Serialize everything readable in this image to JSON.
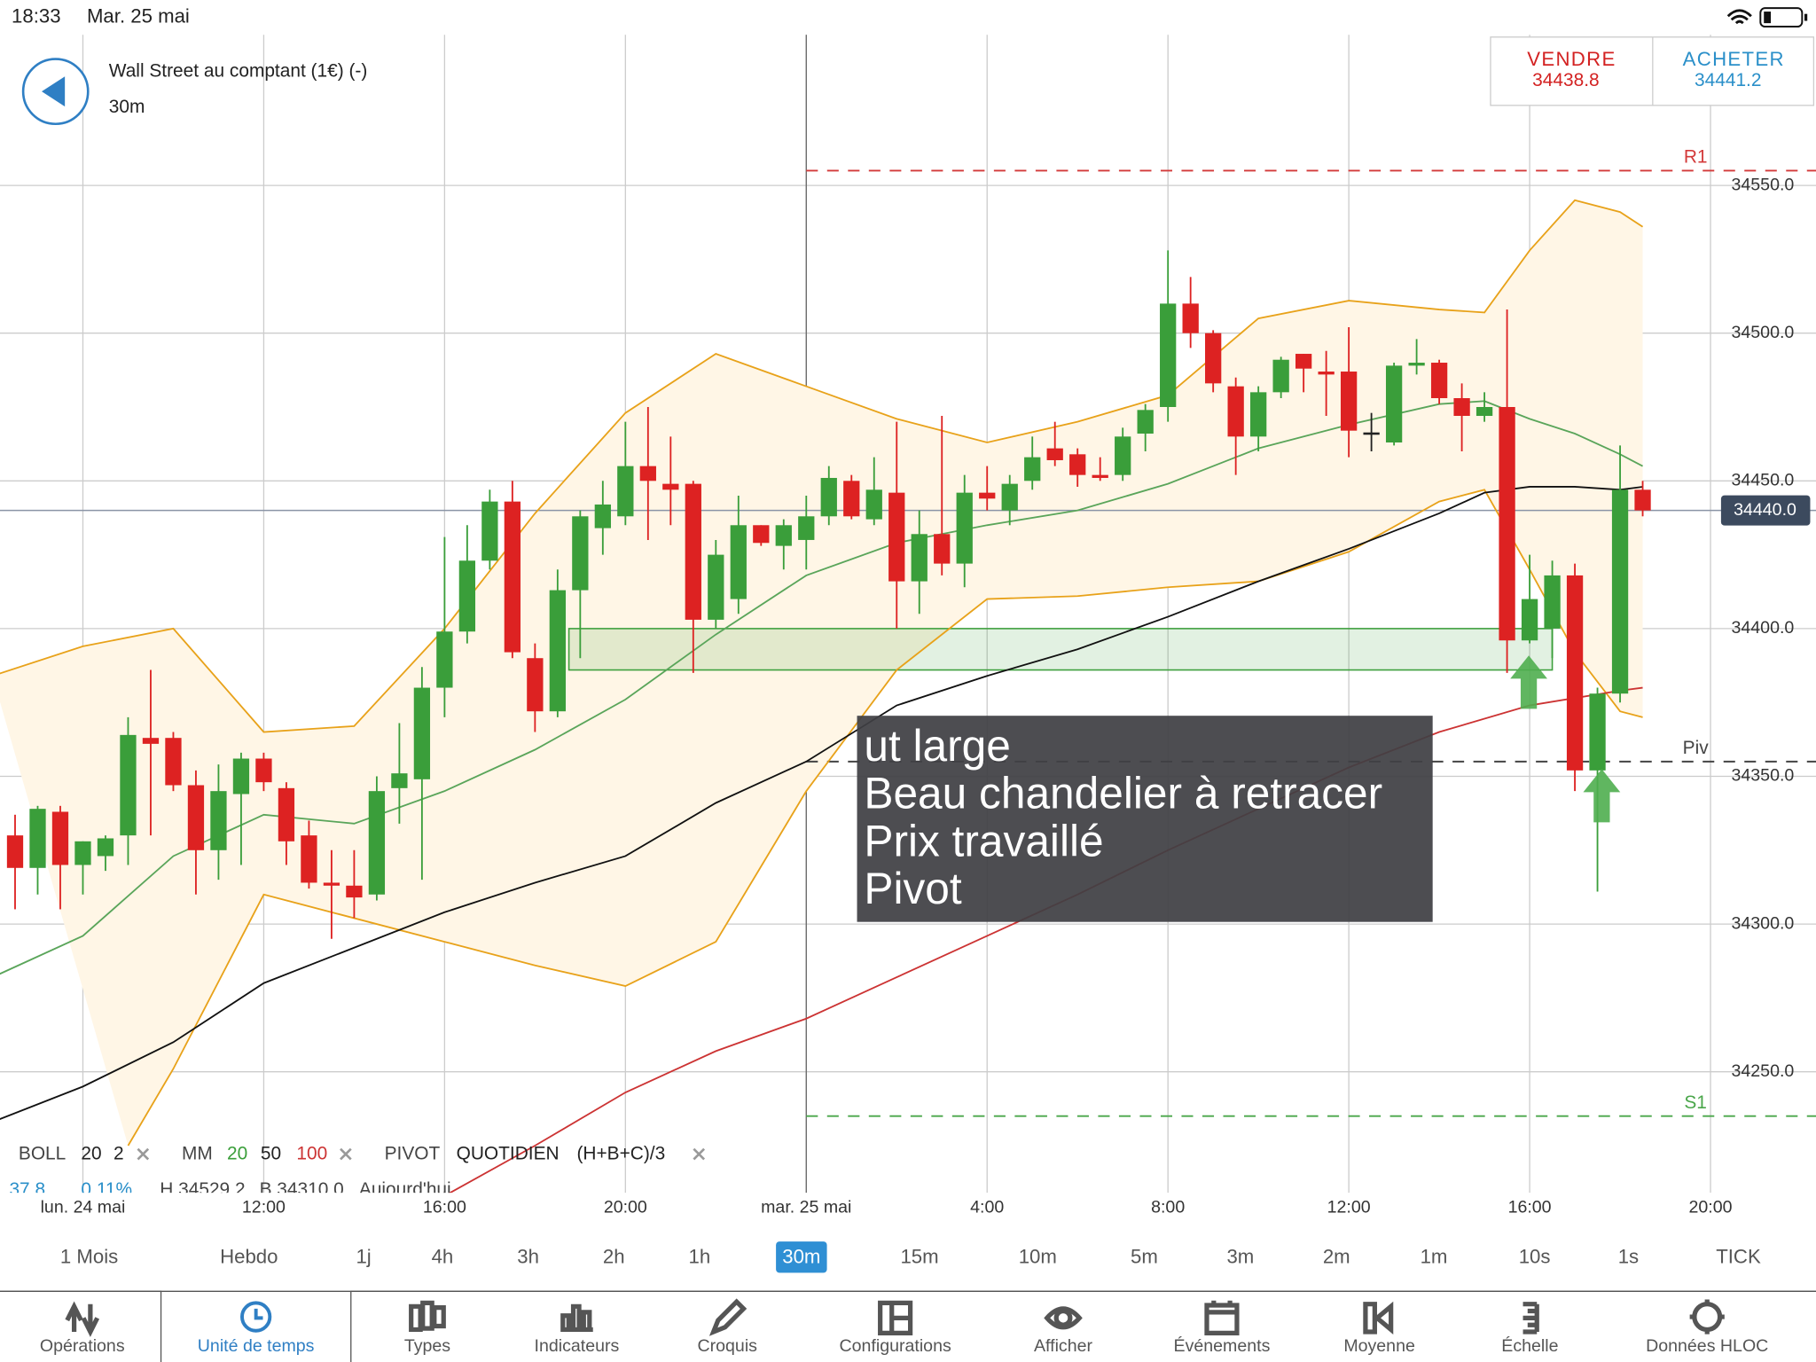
{
  "status_bar": {
    "time": "18:33",
    "date": "Mar. 25 mai"
  },
  "header": {
    "instrument": "Wall Street au comptant (1€) (-)",
    "timeframe": "30m"
  },
  "quote": {
    "sell_label": "VENDRE",
    "sell_price": "34438.8",
    "buy_label": "ACHETER",
    "buy_price": "34441.2"
  },
  "chart_data": {
    "type": "candlestick",
    "colors": {
      "up": "#3a9e3a",
      "down": "#dd2222",
      "doji": "#222222"
    },
    "xlim": [
      "24 mai 06:10",
      "25 mai 22:20"
    ],
    "ylim": [
      34209,
      34601
    ],
    "yticks": [
      {
        "value": 34250,
        "label": "34250.0"
      },
      {
        "value": 34300,
        "label": "34300.0"
      },
      {
        "value": 34350,
        "label": "34350.0"
      },
      {
        "value": 34400,
        "label": "34400.0"
      },
      {
        "value": 34450,
        "label": "34450.0"
      },
      {
        "value": 34500,
        "label": "34500.0"
      },
      {
        "value": 34550,
        "label": "34550.0"
      }
    ],
    "xticks": [
      {
        "value": "24 mai 08:00",
        "label": "lun. 24 mai"
      },
      {
        "value": "24 mai 12:00",
        "label": "12:00"
      },
      {
        "value": "24 mai 16:00",
        "label": "16:00"
      },
      {
        "value": "24 mai 20:00",
        "label": "20:00"
      },
      {
        "value": "25 mai 00:00",
        "label": "mar. 25 mai"
      },
      {
        "value": "25 mai 04:00",
        "label": "4:00"
      },
      {
        "value": "25 mai 08:00",
        "label": "8:00"
      },
      {
        "value": "25 mai 12:00",
        "label": "12:00"
      },
      {
        "value": "25 mai 16:00",
        "label": "16:00"
      },
      {
        "value": "25 mai 20:00",
        "label": "20:00"
      }
    ],
    "grid": true,
    "day_line": "25 mai 00:00",
    "x": [
      "24 mai 06:30",
      "24 mai 07:00",
      "24 mai 07:30",
      "24 mai 08:00",
      "24 mai 08:30",
      "24 mai 09:00",
      "24 mai 09:30",
      "24 mai 10:00",
      "24 mai 10:30",
      "24 mai 11:00",
      "24 mai 11:30",
      "24 mai 12:00",
      "24 mai 12:30",
      "24 mai 13:00",
      "24 mai 13:30",
      "24 mai 14:00",
      "24 mai 14:30",
      "24 mai 15:00",
      "24 mai 15:30",
      "24 mai 16:00",
      "24 mai 16:30",
      "24 mai 17:00",
      "24 mai 17:30",
      "24 mai 18:00",
      "24 mai 18:30",
      "24 mai 19:00",
      "24 mai 19:30",
      "24 mai 20:00",
      "24 mai 20:30",
      "24 mai 21:00",
      "24 mai 21:30",
      "24 mai 22:00",
      "24 mai 22:30",
      "24 mai 23:00",
      "24 mai 23:30",
      "25 mai 00:00",
      "25 mai 00:30",
      "25 mai 01:00",
      "25 mai 01:30",
      "25 mai 02:00",
      "25 mai 02:30",
      "25 mai 03:00",
      "25 mai 03:30",
      "25 mai 04:00",
      "25 mai 04:30",
      "25 mai 05:00",
      "25 mai 05:30",
      "25 mai 06:00",
      "25 mai 06:30",
      "25 mai 07:00",
      "25 mai 07:30",
      "25 mai 08:00",
      "25 mai 08:30",
      "25 mai 09:00",
      "25 mai 09:30",
      "25 mai 10:00",
      "25 mai 10:30",
      "25 mai 11:00",
      "25 mai 11:30",
      "25 mai 12:00",
      "25 mai 12:30",
      "25 mai 13:00",
      "25 mai 13:30",
      "25 mai 14:00",
      "25 mai 14:30",
      "25 mai 15:00",
      "25 mai 15:30",
      "25 mai 16:00",
      "25 mai 16:30",
      "25 mai 17:00",
      "25 mai 17:30",
      "25 mai 18:00",
      "25 mai 18:30"
    ],
    "open": [
      34330,
      34319,
      34338,
      34320,
      34323,
      34330,
      34363,
      34363,
      34347,
      34325,
      34344,
      34356,
      34346,
      34330,
      34314,
      34313,
      34310,
      34346,
      34349,
      34380,
      34399,
      34423,
      34443,
      34390,
      34372,
      34413,
      34434,
      34438,
      34455,
      34449,
      34449,
      34403,
      34410,
      34435,
      34428,
      34430,
      34438,
      34450,
      34437,
      34446,
      34416,
      34432,
      34422,
      34446,
      34440,
      34450,
      34461,
      34459,
      34452,
      34452,
      34466,
      34475,
      34510,
      34500,
      34482,
      34465,
      34480,
      34493,
      34487,
      34487,
      34466,
      34463,
      34489,
      34490,
      34478,
      34472,
      34475,
      34396,
      34400,
      34418,
      34352,
      34378,
      34447
    ],
    "high": [
      34337,
      34340,
      34340,
      34328,
      34330,
      34370,
      34386,
      34365,
      34352,
      34354,
      34358,
      34358,
      34348,
      34335,
      34325,
      34325,
      34350,
      34368,
      34387,
      34431,
      34435,
      34447,
      34450,
      34395,
      34420,
      34440,
      34450,
      34470,
      34475,
      34465,
      34450,
      34430,
      34445,
      34435,
      34437,
      34445,
      34455,
      34452,
      34458,
      34470,
      34440,
      34472,
      34452,
      34455,
      34452,
      34465,
      34470,
      34461,
      34458,
      34468,
      34476,
      34528,
      34519,
      34501,
      34485,
      34482,
      34492,
      34493,
      34494,
      34502,
      34473,
      34490,
      34498,
      34491,
      34483,
      34480,
      34508,
      34425,
      34423,
      34422,
      34380,
      34462,
      34450
    ],
    "low": [
      34305,
      34310,
      34305,
      34310,
      34318,
      34320,
      34330,
      34345,
      34310,
      34315,
      34320,
      34345,
      34320,
      34312,
      34295,
      34302,
      34308,
      34334,
      34315,
      34370,
      34395,
      34420,
      34390,
      34365,
      34370,
      34390,
      34425,
      34435,
      34430,
      34435,
      34385,
      34400,
      34405,
      34428,
      34420,
      34420,
      34435,
      34437,
      34435,
      34400,
      34405,
      34418,
      34414,
      34440,
      34435,
      34447,
      34455,
      34448,
      34450,
      34450,
      34460,
      34470,
      34495,
      34480,
      34452,
      34460,
      34478,
      34480,
      34472,
      34458,
      34460,
      34462,
      34486,
      34476,
      34460,
      34470,
      34385,
      34395,
      34390,
      34345,
      34311,
      34375,
      34438
    ],
    "close": [
      34319,
      34339,
      34320,
      34328,
      34329,
      34364,
      34361,
      34347,
      34325,
      34345,
      34356,
      34348,
      34328,
      34314,
      34313,
      34309,
      34345,
      34351,
      34380,
      34399,
      34423,
      34443,
      34392,
      34372,
      34413,
      34438,
      34442,
      34455,
      34450,
      34447,
      34403,
      34425,
      34435,
      34429,
      34435,
      34438,
      34451,
      34438,
      34447,
      34416,
      34432,
      34422,
      34446,
      34444,
      34449,
      34458,
      34457,
      34452,
      34451,
      34465,
      34474,
      34510,
      34500,
      34483,
      34465,
      34480,
      34491,
      34488,
      34486,
      34467,
      34466,
      34489,
      34490,
      34478,
      34472,
      34475,
      34396,
      34410,
      34418,
      34352,
      34378,
      34447,
      34440
    ],
    "band_fill": "#fff6e6",
    "indicators": [
      {
        "color": "#e8a21a",
        "x": [
          "24 mai 06:00",
          "24 mai 08:00",
          "24 mai 10:00",
          "24 mai 12:00",
          "24 mai 14:00",
          "24 mai 16:00",
          "24 mai 18:00",
          "24 mai 20:00",
          "24 mai 22:00",
          "25 mai 00:00",
          "25 mai 02:00",
          "25 mai 04:00",
          "25 mai 06:00",
          "25 mai 08:00",
          "25 mai 10:00",
          "25 mai 12:00",
          "25 mai 14:00",
          "25 mai 15:00",
          "25 mai 16:00",
          "25 mai 17:00",
          "25 mai 18:00",
          "25 mai 18:30"
        ],
        "values": [
          34384,
          34394,
          34400,
          34365,
          34367,
          34400,
          34439,
          34473,
          34493,
          34482,
          34471,
          34463,
          34470,
          34479,
          34505,
          34511,
          34508,
          34507,
          34528,
          34545,
          34541,
          34536
        ]
      },
      {
        "color": "#e8a21a",
        "x": [
          "24 mai 09:00",
          "24 mai 10:00",
          "24 mai 12:00",
          "24 mai 14:00",
          "24 mai 16:00",
          "24 mai 18:00",
          "24 mai 20:00",
          "24 mai 22:00",
          "25 mai 00:00",
          "25 mai 02:00",
          "25 mai 04:00",
          "25 mai 06:00",
          "25 mai 08:00",
          "25 mai 10:00",
          "25 mai 12:00",
          "25 mai 14:00",
          "25 mai 15:00",
          "25 mai 16:00",
          "25 mai 17:00",
          "25 mai 18:00",
          "25 mai 18:30"
        ],
        "values": [
          34225,
          34251,
          34310,
          34302,
          34294,
          34286,
          34279,
          34294,
          34345,
          34386,
          34410,
          34411,
          34414,
          34416,
          34426,
          34443,
          34447,
          34420,
          34392,
          34372,
          34370
        ]
      },
      {
        "color": "#5aa55a",
        "x": [
          "24 mai 06:00",
          "24 mai 08:00",
          "24 mai 10:00",
          "24 mai 12:00",
          "24 mai 14:00",
          "24 mai 16:00",
          "24 mai 18:00",
          "24 mai 20:00",
          "24 mai 22:00",
          "25 mai 00:00",
          "25 mai 02:00",
          "25 mai 04:00",
          "25 mai 06:00",
          "25 mai 08:00",
          "25 mai 10:00",
          "25 mai 12:00",
          "25 mai 14:00",
          "25 mai 15:00",
          "25 mai 16:00",
          "25 mai 17:00",
          "25 mai 18:00",
          "25 mai 18:30"
        ],
        "values": [
          34282,
          34296,
          34323,
          34337,
          34334,
          34345,
          34359,
          34376,
          34398,
          34418,
          34429,
          34435,
          34440,
          34449,
          34461,
          34469,
          34476,
          34477,
          34471,
          34466,
          34459,
          34455
        ]
      },
      {
        "color": "#111111",
        "x": [
          "24 mai 06:00",
          "24 mai 08:00",
          "24 mai 10:00",
          "24 mai 12:00",
          "24 mai 14:00",
          "24 mai 16:00",
          "24 mai 18:00",
          "24 mai 20:00",
          "24 mai 22:00",
          "25 mai 00:00",
          "25 mai 02:00",
          "25 mai 04:00",
          "25 mai 06:00",
          "25 mai 08:00",
          "25 mai 10:00",
          "25 mai 12:00",
          "25 mai 14:00",
          "25 mai 15:00",
          "25 mai 16:00",
          "25 mai 17:00",
          "25 mai 18:00",
          "25 mai 18:30"
        ],
        "values": [
          34233,
          34245,
          34260,
          34280,
          34292,
          34304,
          34314,
          34323,
          34341,
          34355,
          34374,
          34384,
          34393,
          34404,
          34416,
          34427,
          34439,
          34446,
          34448,
          34448,
          34447,
          34448
        ]
      },
      {
        "color": "#cc3333",
        "x": [
          "24 mai 16:00",
          "24 mai 18:00",
          "24 mai 20:00",
          "24 mai 22:00",
          "25 mai 00:00",
          "25 mai 02:00",
          "25 mai 04:00",
          "25 mai 06:00",
          "25 mai 08:00",
          "25 mai 10:00",
          "25 mai 12:00",
          "25 mai 14:00",
          "25 mai 16:00",
          "25 mai 18:00",
          "25 mai 18:30"
        ],
        "values": [
          34208,
          34225,
          34243,
          34257,
          34268,
          34282,
          34296,
          34310,
          34325,
          34339,
          34353,
          34365,
          34374,
          34379,
          34380
        ]
      }
    ],
    "levels": [
      {
        "label": "R1",
        "value": 34555,
        "color": "#d33a3a",
        "from": "25 mai 00:00"
      },
      {
        "label": "Piv",
        "value": 34355,
        "color": "#444444",
        "from": "25 mai 00:00"
      },
      {
        "label": "S1",
        "value": 34235,
        "color": "#4aa64a",
        "from": "25 mai 00:00"
      }
    ],
    "zone": {
      "x": [
        "24 mai 18:45",
        "25 mai 16:30"
      ],
      "values": [
        34400,
        34386
      ],
      "color": "#3c9f3c"
    },
    "last_price": {
      "value": 34440,
      "label": "34440.0"
    },
    "annotation": [
      "ut large",
      "Beau chandelier à retracer",
      "Prix travaillé",
      "Pivot"
    ]
  },
  "legend": {
    "boll": [
      "BOLL",
      "20",
      "2"
    ],
    "mm": [
      "MM",
      "20",
      "50",
      "100"
    ],
    "pivot": [
      "PIVOT",
      "QUOTIDIEN",
      "(H+B+C)/3"
    ],
    "stats": [
      "37.8",
      "0.11%",
      "H 34529.2",
      "B 34310.0",
      "Aujourd'hui"
    ]
  },
  "timeframes": {
    "items": [
      "1 Mois",
      "Hebdo",
      "1j",
      "4h",
      "3h",
      "2h",
      "1h",
      "30m",
      "15m",
      "10m",
      "5m",
      "3m",
      "2m",
      "1m",
      "10s",
      "1s",
      "TICK"
    ],
    "selected": 7
  },
  "toolbar": {
    "items": [
      "Opérations",
      "Unité de temps",
      "Types",
      "Indicateurs",
      "Croquis",
      "Configurations",
      "Afficher",
      "Événements",
      "Moyenne",
      "Échelle",
      "Données HLOC"
    ],
    "selected": 1
  }
}
